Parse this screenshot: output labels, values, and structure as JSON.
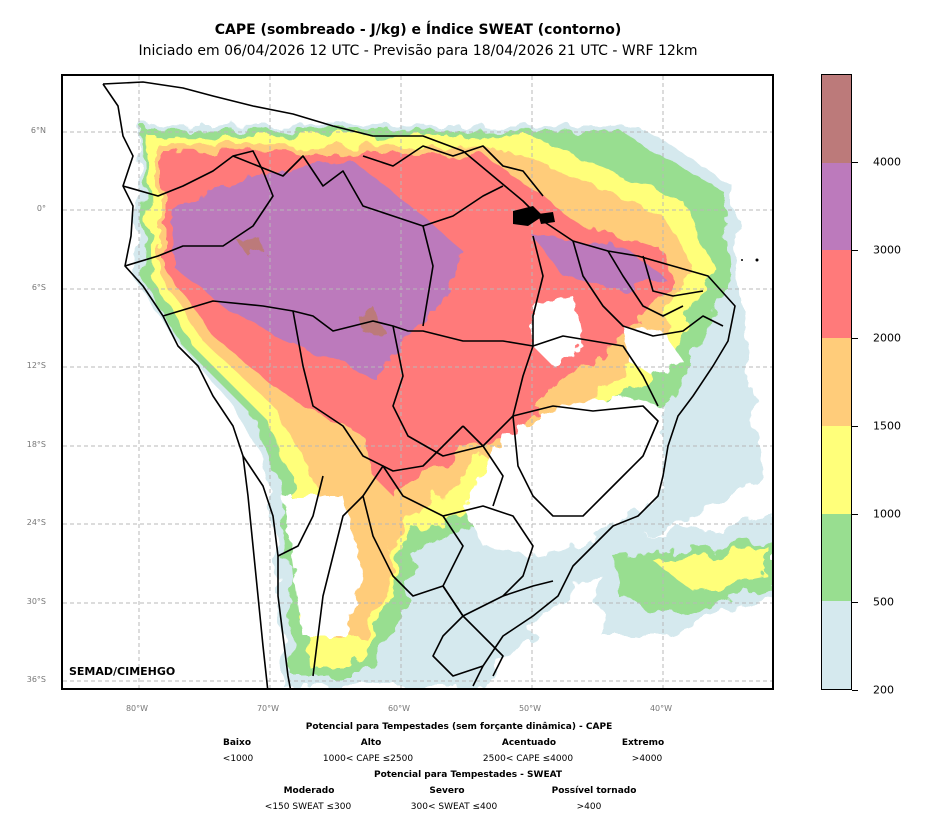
{
  "title": "CAPE (sombreado - J/kg) e Índice SWEAT (contorno)",
  "subtitle": "Iniciado em 06/04/2026 12 UTC - Previsão para 18/04/2026 21 UTC - WRF 12km",
  "credit": "SEMAD/CIMEHGO",
  "lat_labels": [
    "6°N",
    "0°",
    "6°S",
    "12°S",
    "18°S",
    "24°S",
    "30°S",
    "36°S"
  ],
  "lon_labels": [
    "80°W",
    "70°W",
    "60°W",
    "50°W",
    "40°W"
  ],
  "colorbar": {
    "labels": [
      "200",
      "500",
      "1000",
      "1500",
      "2000",
      "3000",
      "4000"
    ],
    "colors": [
      "#d5e9ee",
      "#98de90",
      "#ffff7a",
      "#ffcc7a",
      "#ff7a7a",
      "#bc7abc",
      "#bc7a7a"
    ]
  },
  "legend": {
    "cape_heading": "Potencial para Tempestades (sem forçante dinâmica) - CAPE",
    "cape_items": [
      {
        "name": "Baixo",
        "range": "<1000"
      },
      {
        "name": "Alto",
        "range": "1000< CAPE ≤2500"
      },
      {
        "name": "Acentuado",
        "range": "2500< CAPE ≤4000"
      },
      {
        "name": "Extremo",
        "range": ">4000"
      }
    ],
    "sweat_heading": "Potencial para Tempestades - SWEAT",
    "sweat_items": [
      {
        "name": "Moderado",
        "range": "<150 SWEAT ≤300"
      },
      {
        "name": "Severo",
        "range": "300< SWEAT ≤400"
      },
      {
        "name": "Possível tornado",
        "range": ">400"
      }
    ]
  }
}
